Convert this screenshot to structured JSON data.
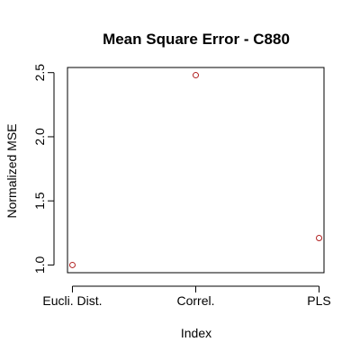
{
  "chart_data": {
    "type": "scatter",
    "title": "Mean Square Error - C880",
    "xlabel": "Index",
    "ylabel": "Normalized MSE",
    "categories": [
      "Eucli. Dist.",
      "Correl.",
      "PLS"
    ],
    "values": [
      1.0,
      2.48,
      1.21
    ],
    "yticks": [
      "1.0",
      "1.5",
      "2.0",
      "2.5"
    ],
    "ytick_values": [
      1.0,
      1.5,
      2.0,
      2.5
    ],
    "ylim": [
      0.94,
      2.54
    ],
    "xlim": [
      0.96,
      3.04
    ],
    "grid": false,
    "point_color": "#b22222",
    "point_style": "open-circle"
  }
}
